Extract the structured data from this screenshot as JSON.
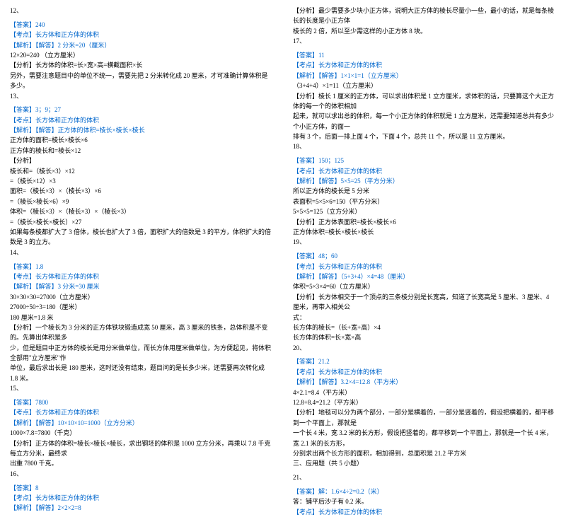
{
  "colors": {
    "text": "#000000",
    "accent": "#0066cc",
    "background": "#ffffff"
  },
  "fontsize": 9,
  "left": [
    {
      "t": "12、",
      "c": "black"
    },
    {
      "t": "",
      "c": "black"
    },
    {
      "t": "【答案】240",
      "c": "blue"
    },
    {
      "t": "【考点】长方体和正方体的体积",
      "c": "blue"
    },
    {
      "t": "【解析】【解答】2 分米=20（厘米）",
      "c": "blue"
    },
    {
      "t": "12×20=240 （立方厘米）",
      "c": "black"
    },
    {
      "t": "【分析】长方体的体积=长×宽×高=横截面积×长",
      "c": "black"
    },
    {
      "t": "另外，需要注意题目中的单位不统一，需要先把 2 分米转化成 20 厘米，才可准确计算体积是多少。",
      "c": "black"
    },
    {
      "t": "13、",
      "c": "black"
    },
    {
      "t": "",
      "c": "black"
    },
    {
      "t": "【答案】3；9；27",
      "c": "blue"
    },
    {
      "t": "【考点】长方体和正方体的体积",
      "c": "blue"
    },
    {
      "t": "【解析】【解答】正方体的体积=棱长×棱长×棱长",
      "c": "blue"
    },
    {
      "t": "正方体的面积=棱长×棱长×6",
      "c": "black"
    },
    {
      "t": "正方体的棱长和=棱长×12",
      "c": "black"
    },
    {
      "t": "【分析】",
      "c": "black"
    },
    {
      "t": "棱长和=（棱长×3）×12",
      "c": "black"
    },
    {
      "t": "=（棱长×12）×3",
      "c": "black"
    },
    {
      "t": "面积=（棱长×3）×（棱长×3）×6",
      "c": "black"
    },
    {
      "t": "=（棱长×棱长×6）×9",
      "c": "black"
    },
    {
      "t": "体积=（棱长×3）×（棱长×3）×（棱长×3）",
      "c": "black"
    },
    {
      "t": "=（棱长×棱长×棱长）×27",
      "c": "black"
    },
    {
      "t": "如果每条棱都扩大了 3 倍体，棱长也扩大了 3 倍，面积扩大的倍数是 3 的平方，体积扩大的倍数是 3 的立方。",
      "c": "black"
    },
    {
      "t": "14、",
      "c": "black"
    },
    {
      "t": "",
      "c": "black"
    },
    {
      "t": "【答案】1.8",
      "c": "blue"
    },
    {
      "t": "【考点】长方体和正方体的体积",
      "c": "blue"
    },
    {
      "t": "【解析】【解答】3 分米=30 厘米",
      "c": "blue"
    },
    {
      "t": "30×30×30=27000（立方厘米）",
      "c": "black"
    },
    {
      "t": "27000÷50÷3=180（厘米）",
      "c": "black"
    },
    {
      "t": "180 厘米=1.8 米",
      "c": "black"
    },
    {
      "t": "【分析】一个棱长为 3 分米的正方体铁块锻造成宽 50 厘米，高 3 厘米的铁条，总体积是不变的。先算出体积是多",
      "c": "black"
    },
    {
      "t": "少，但是题目中正方体的棱长是用分米做单位，而长方体用厘米做单位，为方便起见，将体积全部用\"立方厘米\"作",
      "c": "black"
    },
    {
      "t": "单位，最后求出长是 180 厘米，这时还没有结束，题目问的是长多少米，还需要再次转化成 1.8 米。",
      "c": "black"
    },
    {
      "t": "15、",
      "c": "black"
    },
    {
      "t": "",
      "c": "black"
    },
    {
      "t": "【答案】7800",
      "c": "blue"
    },
    {
      "t": "【考点】长方体和正方体的体积",
      "c": "blue"
    },
    {
      "t": "【解析】【解答】10×10×10=1000（立方分米）",
      "c": "blue"
    },
    {
      "t": "1000×7.8=7800（千克）",
      "c": "black"
    },
    {
      "t": "【分析】正方体的体积=棱长×棱长×棱长，求出钢坯的体积是 1000 立方分米，再乘以 7.8 千克每立方分米，最终求",
      "c": "black"
    },
    {
      "t": "出重 7800 千克。",
      "c": "black"
    },
    {
      "t": "16、",
      "c": "black"
    },
    {
      "t": "",
      "c": "black"
    },
    {
      "t": "【答案】8",
      "c": "blue"
    },
    {
      "t": "【考点】长方体和正方体的体积",
      "c": "blue"
    },
    {
      "t": "【解析】【解答】2×2×2=8",
      "c": "blue"
    }
  ],
  "right": [
    {
      "t": "【分析】最少需要多少块小正方体，说明大正方体的棱长尽量小一些，最小的话，就是每条棱长的长度是小正方体",
      "c": "black"
    },
    {
      "t": "棱长的 2 倍，所以至少需这样的小正方体 8 块。",
      "c": "black"
    },
    {
      "t": "17、",
      "c": "black"
    },
    {
      "t": "",
      "c": "black"
    },
    {
      "t": "【答案】11",
      "c": "blue"
    },
    {
      "t": "【考点】长方体和正方体的体积",
      "c": "blue"
    },
    {
      "t": "【解析】【解答】1×1×1=1（立方厘米）",
      "c": "blue"
    },
    {
      "t": "（3+4+4）×1=11（立方厘米）",
      "c": "black"
    },
    {
      "t": "【分析】棱长 1 厘米的正方体，可以求出体积是 1 立方厘米，求体积的话，只要算这个大正方体的每一个的体积相加",
      "c": "black"
    },
    {
      "t": "起来，就可以求出总的体积，每一个小正方体的体积就是 1 立方厘米，还需要知道总共有多少个小正方体，的面一",
      "c": "black"
    },
    {
      "t": "排有 3 个，后面一排上面 4 个，下面 4 个，总共 11 个，所以是 11 立方厘米。",
      "c": "black"
    },
    {
      "t": "18、",
      "c": "black"
    },
    {
      "t": "",
      "c": "black"
    },
    {
      "t": "【答案】150；125",
      "c": "blue"
    },
    {
      "t": "【考点】长方体和正方体的体积",
      "c": "blue"
    },
    {
      "t": "【解析】【解答】5×5=25（平方分米）",
      "c": "blue"
    },
    {
      "t": "所以正方体的棱长是 5 分米",
      "c": "black"
    },
    {
      "t": "表面积=5×5×6=150（平方分米）",
      "c": "black"
    },
    {
      "t": "5×5×5=125（立方分米）",
      "c": "black"
    },
    {
      "t": "【分析】正方体表面积=棱长×棱长×6",
      "c": "black"
    },
    {
      "t": "正方体体积=棱长×棱长×棱长",
      "c": "black"
    },
    {
      "t": "19、",
      "c": "black"
    },
    {
      "t": "",
      "c": "black"
    },
    {
      "t": "【答案】48；60",
      "c": "blue"
    },
    {
      "t": "【考点】长方体和正方体的体积",
      "c": "blue"
    },
    {
      "t": "【解析】【解答】（5+3+4）×4=48（厘米）",
      "c": "blue"
    },
    {
      "t": "体积=5×3×4=60（立方厘米）",
      "c": "black"
    },
    {
      "t": "【分析】长方体相交于一个顶点的三条棱分别是长宽高，知道了长宽高是 5 厘米、3 厘米、4 厘米，再带入相关公",
      "c": "black"
    },
    {
      "t": "式：",
      "c": "black"
    },
    {
      "t": "长方体的棱长=（长+宽+高）×4",
      "c": "black"
    },
    {
      "t": "长方体的体积=长×宽×高",
      "c": "black"
    },
    {
      "t": "20、",
      "c": "black"
    },
    {
      "t": "",
      "c": "black"
    },
    {
      "t": "【答案】21.2",
      "c": "blue"
    },
    {
      "t": "【考点】长方体和正方体的体积",
      "c": "blue"
    },
    {
      "t": "【解析】【解答】3.2×4=12.8（平方米）",
      "c": "blue"
    },
    {
      "t": "4×2.1=8.4（平方米）",
      "c": "black"
    },
    {
      "t": "12.8+8.4=21.2（平方米）",
      "c": "black"
    },
    {
      "t": "【分析】地毯可以分为两个部分，一部分是横着的，一部分是竖着的，假设把横着的，都平移到一个平面上，那就是",
      "c": "black"
    },
    {
      "t": "一个长 4 米，宽 3.2 米的长方形，假设把竖着的，都平移到一个平面上，那就是一个长 4 米，宽 2.1 米的长方形，",
      "c": "black"
    },
    {
      "t": "分别求出两个长方形的面积，相加得到，总面积是 21.2 平方米",
      "c": "black"
    },
    {
      "t": "三、应用题（共 5 小题）",
      "c": "black"
    },
    {
      "t": "",
      "c": "black"
    },
    {
      "t": "21、",
      "c": "black"
    },
    {
      "t": "",
      "c": "black"
    },
    {
      "t": "【答案】解：1.6×4÷2=0.2（米）",
      "c": "blue"
    },
    {
      "t": "答：铺平后沙子有 0.2 米。",
      "c": "black"
    },
    {
      "t": "【考点】长方体和正方体的体积",
      "c": "blue"
    }
  ]
}
